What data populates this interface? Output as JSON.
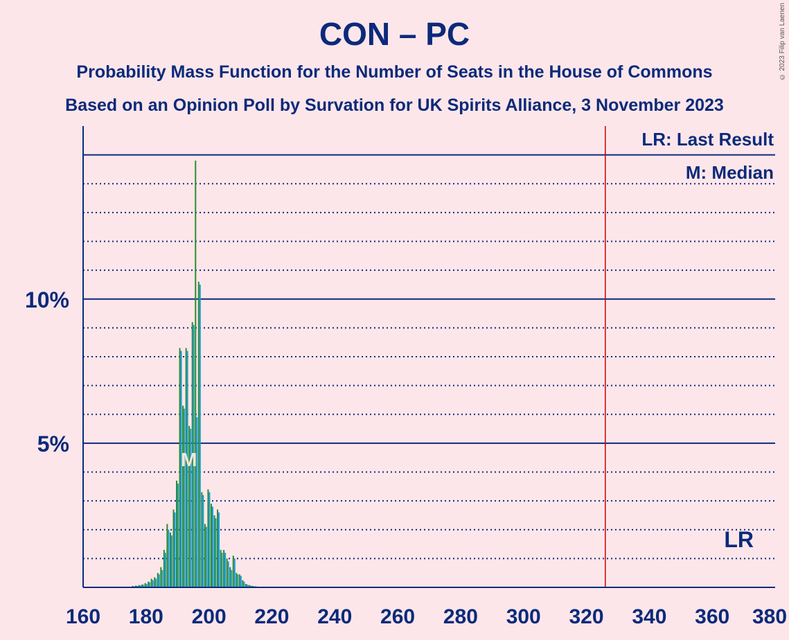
{
  "title": "CON – PC",
  "subtitle1": "Probability Mass Function for the Number of Seats in the House of Commons",
  "subtitle2": "Based on an Opinion Poll by Survation for UK Spirits Alliance, 3 November 2023",
  "copyright": "© 2023 Filip van Laenen",
  "colors": {
    "background": "#fde6ea",
    "text": "#0b2a7a",
    "bar_green": "#2e8b2e",
    "bar_blue": "#1a9cd8",
    "last_result_line": "#cc0000"
  },
  "chart_data": {
    "type": "bar",
    "xlim": [
      160,
      380
    ],
    "ylim": [
      0,
      16
    ],
    "x_ticks": [
      "160",
      "180",
      "200",
      "220",
      "240",
      "260",
      "280",
      "300",
      "320",
      "340",
      "360",
      "380"
    ],
    "y_ticks": [
      "5%",
      "10%"
    ],
    "x_step": 20,
    "grid": "dotted every 1%, solid at 5% and 10%",
    "last_result": 326,
    "median": 193,
    "legend": {
      "last_result": "LR: Last Result",
      "median": "M: Median",
      "lr_marker": "LR",
      "median_marker": "M",
      "position": "top-right"
    },
    "bars": [
      {
        "x": 176,
        "green": 0.05,
        "blue": 0.04
      },
      {
        "x": 177,
        "green": 0.06,
        "blue": 0.05
      },
      {
        "x": 178,
        "green": 0.08,
        "blue": 0.07
      },
      {
        "x": 179,
        "green": 0.1,
        "blue": 0.09
      },
      {
        "x": 180,
        "green": 0.15,
        "blue": 0.12
      },
      {
        "x": 181,
        "green": 0.2,
        "blue": 0.18
      },
      {
        "x": 182,
        "green": 0.3,
        "blue": 0.25
      },
      {
        "x": 183,
        "green": 0.35,
        "blue": 0.3
      },
      {
        "x": 184,
        "green": 0.5,
        "blue": 0.45
      },
      {
        "x": 185,
        "green": 0.7,
        "blue": 0.6
      },
      {
        "x": 186,
        "green": 1.3,
        "blue": 1.2
      },
      {
        "x": 187,
        "green": 2.2,
        "blue": 2.0
      },
      {
        "x": 188,
        "green": 1.9,
        "blue": 1.8
      },
      {
        "x": 189,
        "green": 2.7,
        "blue": 2.6
      },
      {
        "x": 190,
        "green": 3.7,
        "blue": 3.6
      },
      {
        "x": 191,
        "green": 8.3,
        "blue": 8.2
      },
      {
        "x": 192,
        "green": 6.3,
        "blue": 6.2
      },
      {
        "x": 193,
        "green": 8.3,
        "blue": 8.2
      },
      {
        "x": 194,
        "green": 5.6,
        "blue": 5.5
      },
      {
        "x": 195,
        "green": 9.2,
        "blue": 9.1
      },
      {
        "x": 196,
        "green": 14.8,
        "blue": 5.9
      },
      {
        "x": 197,
        "green": 10.6,
        "blue": 10.5
      },
      {
        "x": 198,
        "green": 3.3,
        "blue": 3.2
      },
      {
        "x": 199,
        "green": 2.2,
        "blue": 2.1
      },
      {
        "x": 200,
        "green": 3.4,
        "blue": 3.3
      },
      {
        "x": 201,
        "green": 2.9,
        "blue": 2.8
      },
      {
        "x": 202,
        "green": 2.5,
        "blue": 2.4
      },
      {
        "x": 203,
        "green": 2.7,
        "blue": 2.6
      },
      {
        "x": 204,
        "green": 1.3,
        "blue": 1.2
      },
      {
        "x": 205,
        "green": 1.3,
        "blue": 1.2
      },
      {
        "x": 206,
        "green": 1.0,
        "blue": 0.9
      },
      {
        "x": 207,
        "green": 0.7,
        "blue": 0.6
      },
      {
        "x": 208,
        "green": 1.1,
        "blue": 1.0
      },
      {
        "x": 209,
        "green": 0.5,
        "blue": 0.45
      },
      {
        "x": 210,
        "green": 0.45,
        "blue": 0.4
      },
      {
        "x": 211,
        "green": 0.25,
        "blue": 0.2
      },
      {
        "x": 212,
        "green": 0.12,
        "blue": 0.1
      },
      {
        "x": 213,
        "green": 0.08,
        "blue": 0.07
      },
      {
        "x": 214,
        "green": 0.05,
        "blue": 0.04
      },
      {
        "x": 215,
        "green": 0.04,
        "blue": 0.03
      }
    ]
  }
}
